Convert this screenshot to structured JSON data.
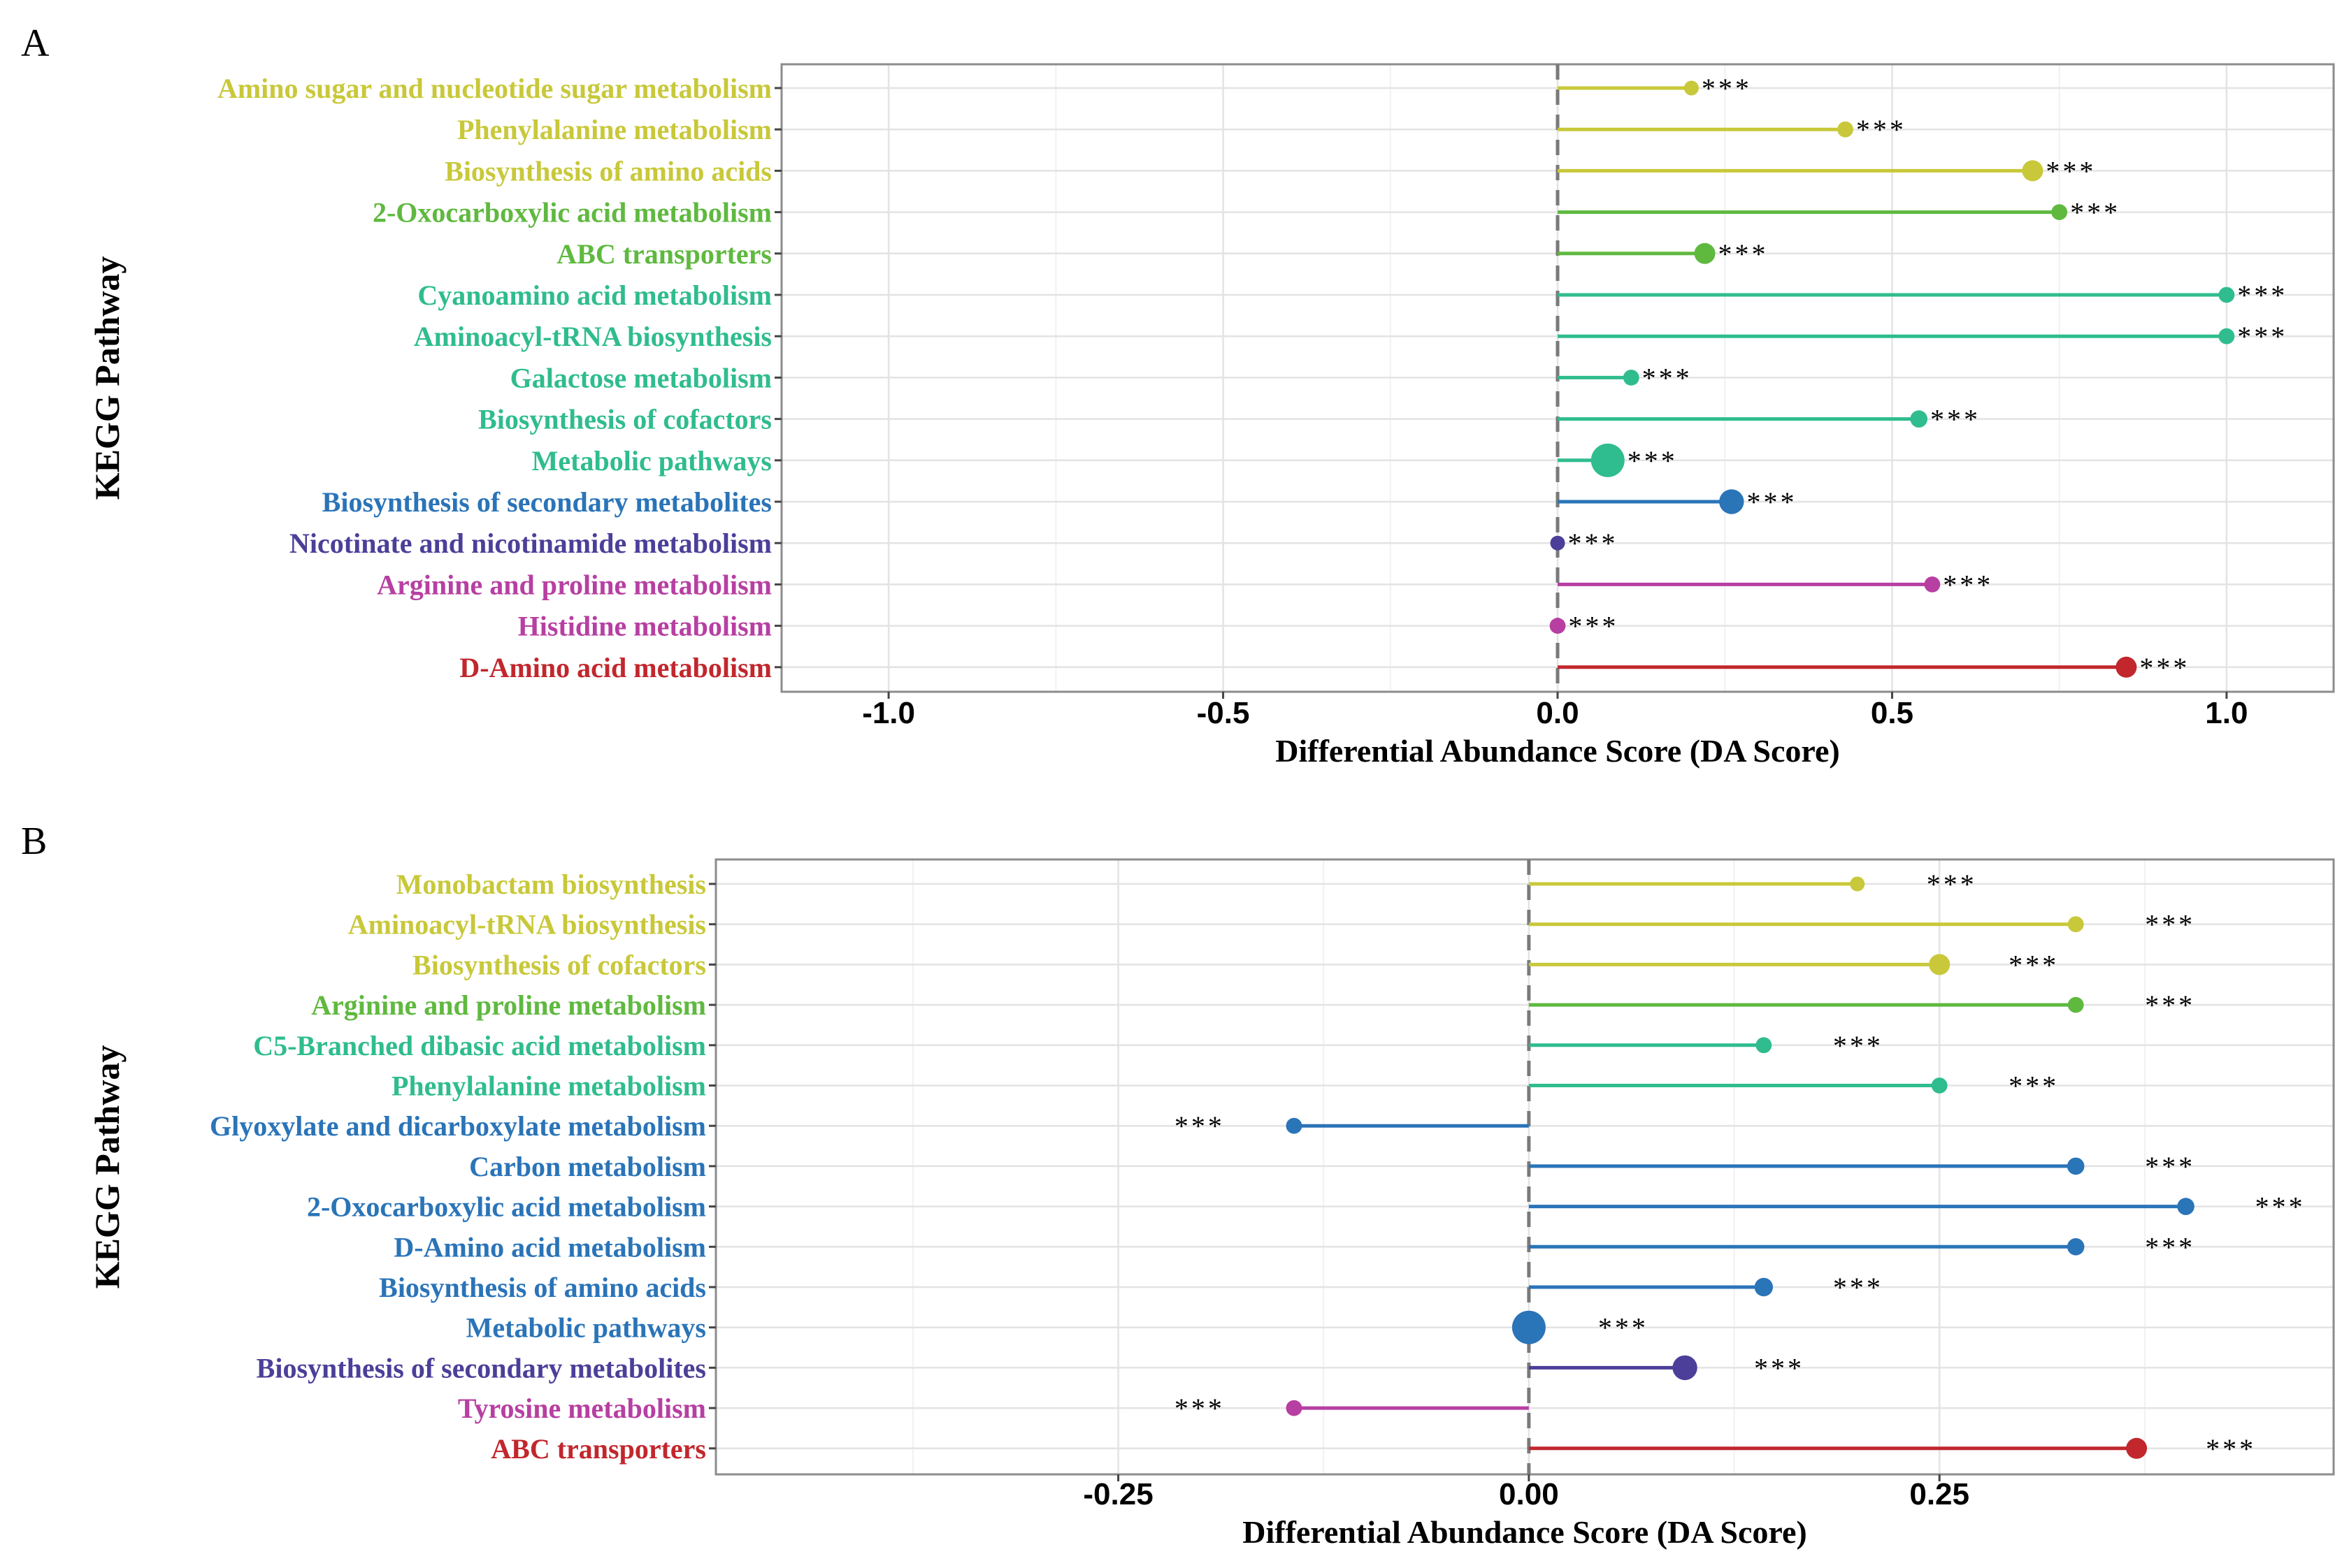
{
  "chart_data": [
    {
      "panel": "A",
      "type": "lollipop",
      "xlabel": "Differential Abundance Score (DA Score)",
      "ylabel": "KEGG Pathway",
      "xlim": [
        -1.16,
        1.16
      ],
      "xticks": [
        -1.0,
        -0.5,
        0.0,
        0.5,
        1.0
      ],
      "xtick_labels": [
        "-1.0",
        "-0.5",
        "0.0",
        "0.5",
        "1.0"
      ],
      "grid": true,
      "reference_line": 0,
      "points": [
        {
          "label": "Amino sugar and nucleotide sugar metabolism",
          "value": 0.2,
          "size": 1,
          "color": "#c8c83a",
          "sig": "***"
        },
        {
          "label": "Phenylalanine metabolism",
          "value": 0.43,
          "size": 1.2,
          "color": "#c8c83a",
          "sig": "***"
        },
        {
          "label": "Biosynthesis of amino acids",
          "value": 0.71,
          "size": 2,
          "color": "#c8c83a",
          "sig": "***"
        },
        {
          "label": "2-Oxocarboxylic acid metabolism",
          "value": 0.75,
          "size": 1.2,
          "color": "#5fb93f",
          "sig": "***"
        },
        {
          "label": "ABC transporters",
          "value": 0.22,
          "size": 2,
          "color": "#5fb93f",
          "sig": "***"
        },
        {
          "label": "Cyanoamino acid metabolism",
          "value": 1.0,
          "size": 1.2,
          "color": "#2fbc8e",
          "sig": "***"
        },
        {
          "label": "Aminoacyl-tRNA biosynthesis",
          "value": 1.0,
          "size": 1.2,
          "color": "#2fbc8e",
          "sig": "***"
        },
        {
          "label": "Galactose metabolism",
          "value": 0.11,
          "size": 1.2,
          "color": "#2fbc8e",
          "sig": "***"
        },
        {
          "label": "Biosynthesis of cofactors",
          "value": 0.54,
          "size": 1.4,
          "color": "#2fbc8e",
          "sig": "***"
        },
        {
          "label": "Metabolic pathways",
          "value": 0.075,
          "size": 4,
          "color": "#2fbc8e",
          "sig": "***"
        },
        {
          "label": "Biosynthesis of secondary metabolites",
          "value": 0.26,
          "size": 2.6,
          "color": "#2a74b8",
          "sig": "***"
        },
        {
          "label": "Nicotinate and nicotinamide metabolism",
          "value": 0.0,
          "size": 1,
          "color": "#4b3f99",
          "sig": "***"
        },
        {
          "label": "Arginine and proline metabolism",
          "value": 0.56,
          "size": 1.2,
          "color": "#b73fa2",
          "sig": "***"
        },
        {
          "label": "Histidine metabolism",
          "value": 0.0,
          "size": 1.2,
          "color": "#b73fa2",
          "sig": "***"
        },
        {
          "label": "D-Amino acid metabolism",
          "value": 0.85,
          "size": 2,
          "color": "#c1272d",
          "sig": "***"
        }
      ]
    },
    {
      "panel": "B",
      "type": "lollipop",
      "xlabel": "Differential Abundance Score (DA Score)",
      "ylabel": "KEGG Pathway",
      "xlim": [
        -0.495,
        0.49
      ],
      "xticks": [
        -0.25,
        0.0,
        0.25
      ],
      "xtick_labels": [
        "-0.25",
        "0.00",
        "0.25"
      ],
      "grid": true,
      "reference_line": 0,
      "points": [
        {
          "label": "Monobactam biosynthesis",
          "value": 0.2,
          "size": 1,
          "color": "#c8c83a",
          "sig": "***"
        },
        {
          "label": "Aminoacyl-tRNA biosynthesis",
          "value": 0.333,
          "size": 1.2,
          "color": "#c8c83a",
          "sig": "***"
        },
        {
          "label": "Biosynthesis of cofactors",
          "value": 0.25,
          "size": 2,
          "color": "#c8c83a",
          "sig": "***"
        },
        {
          "label": "Arginine and proline metabolism",
          "value": 0.333,
          "size": 1.2,
          "color": "#5fb93f",
          "sig": "***"
        },
        {
          "label": "C5-Branched dibasic acid metabolism",
          "value": 0.143,
          "size": 1.2,
          "color": "#2fbc8e",
          "sig": "***"
        },
        {
          "label": "Phenylalanine metabolism",
          "value": 0.25,
          "size": 1.2,
          "color": "#2fbc8e",
          "sig": "***"
        },
        {
          "label": "Glyoxylate and dicarboxylate metabolism",
          "value": -0.143,
          "size": 1.2,
          "color": "#2a74b8",
          "sig": "***"
        },
        {
          "label": "Carbon metabolism",
          "value": 0.333,
          "size": 1.4,
          "color": "#2a74b8",
          "sig": "***"
        },
        {
          "label": "2-Oxocarboxylic acid metabolism",
          "value": 0.4,
          "size": 1.4,
          "color": "#2a74b8",
          "sig": "***"
        },
        {
          "label": "D-Amino acid metabolism",
          "value": 0.333,
          "size": 1.4,
          "color": "#2a74b8",
          "sig": "***"
        },
        {
          "label": "Biosynthesis of amino acids",
          "value": 0.143,
          "size": 1.6,
          "color": "#2a74b8",
          "sig": "***"
        },
        {
          "label": "Metabolic pathways",
          "value": 0.0,
          "size": 4,
          "color": "#2a74b8",
          "sig": "***"
        },
        {
          "label": "Biosynthesis of secondary metabolites",
          "value": 0.095,
          "size": 2.6,
          "color": "#4b3f99",
          "sig": "***"
        },
        {
          "label": "Tyrosine metabolism",
          "value": -0.143,
          "size": 1.2,
          "color": "#b73fa2",
          "sig": "***"
        },
        {
          "label": "ABC transporters",
          "value": 0.37,
          "size": 2,
          "color": "#c1272d",
          "sig": "***"
        }
      ]
    }
  ]
}
